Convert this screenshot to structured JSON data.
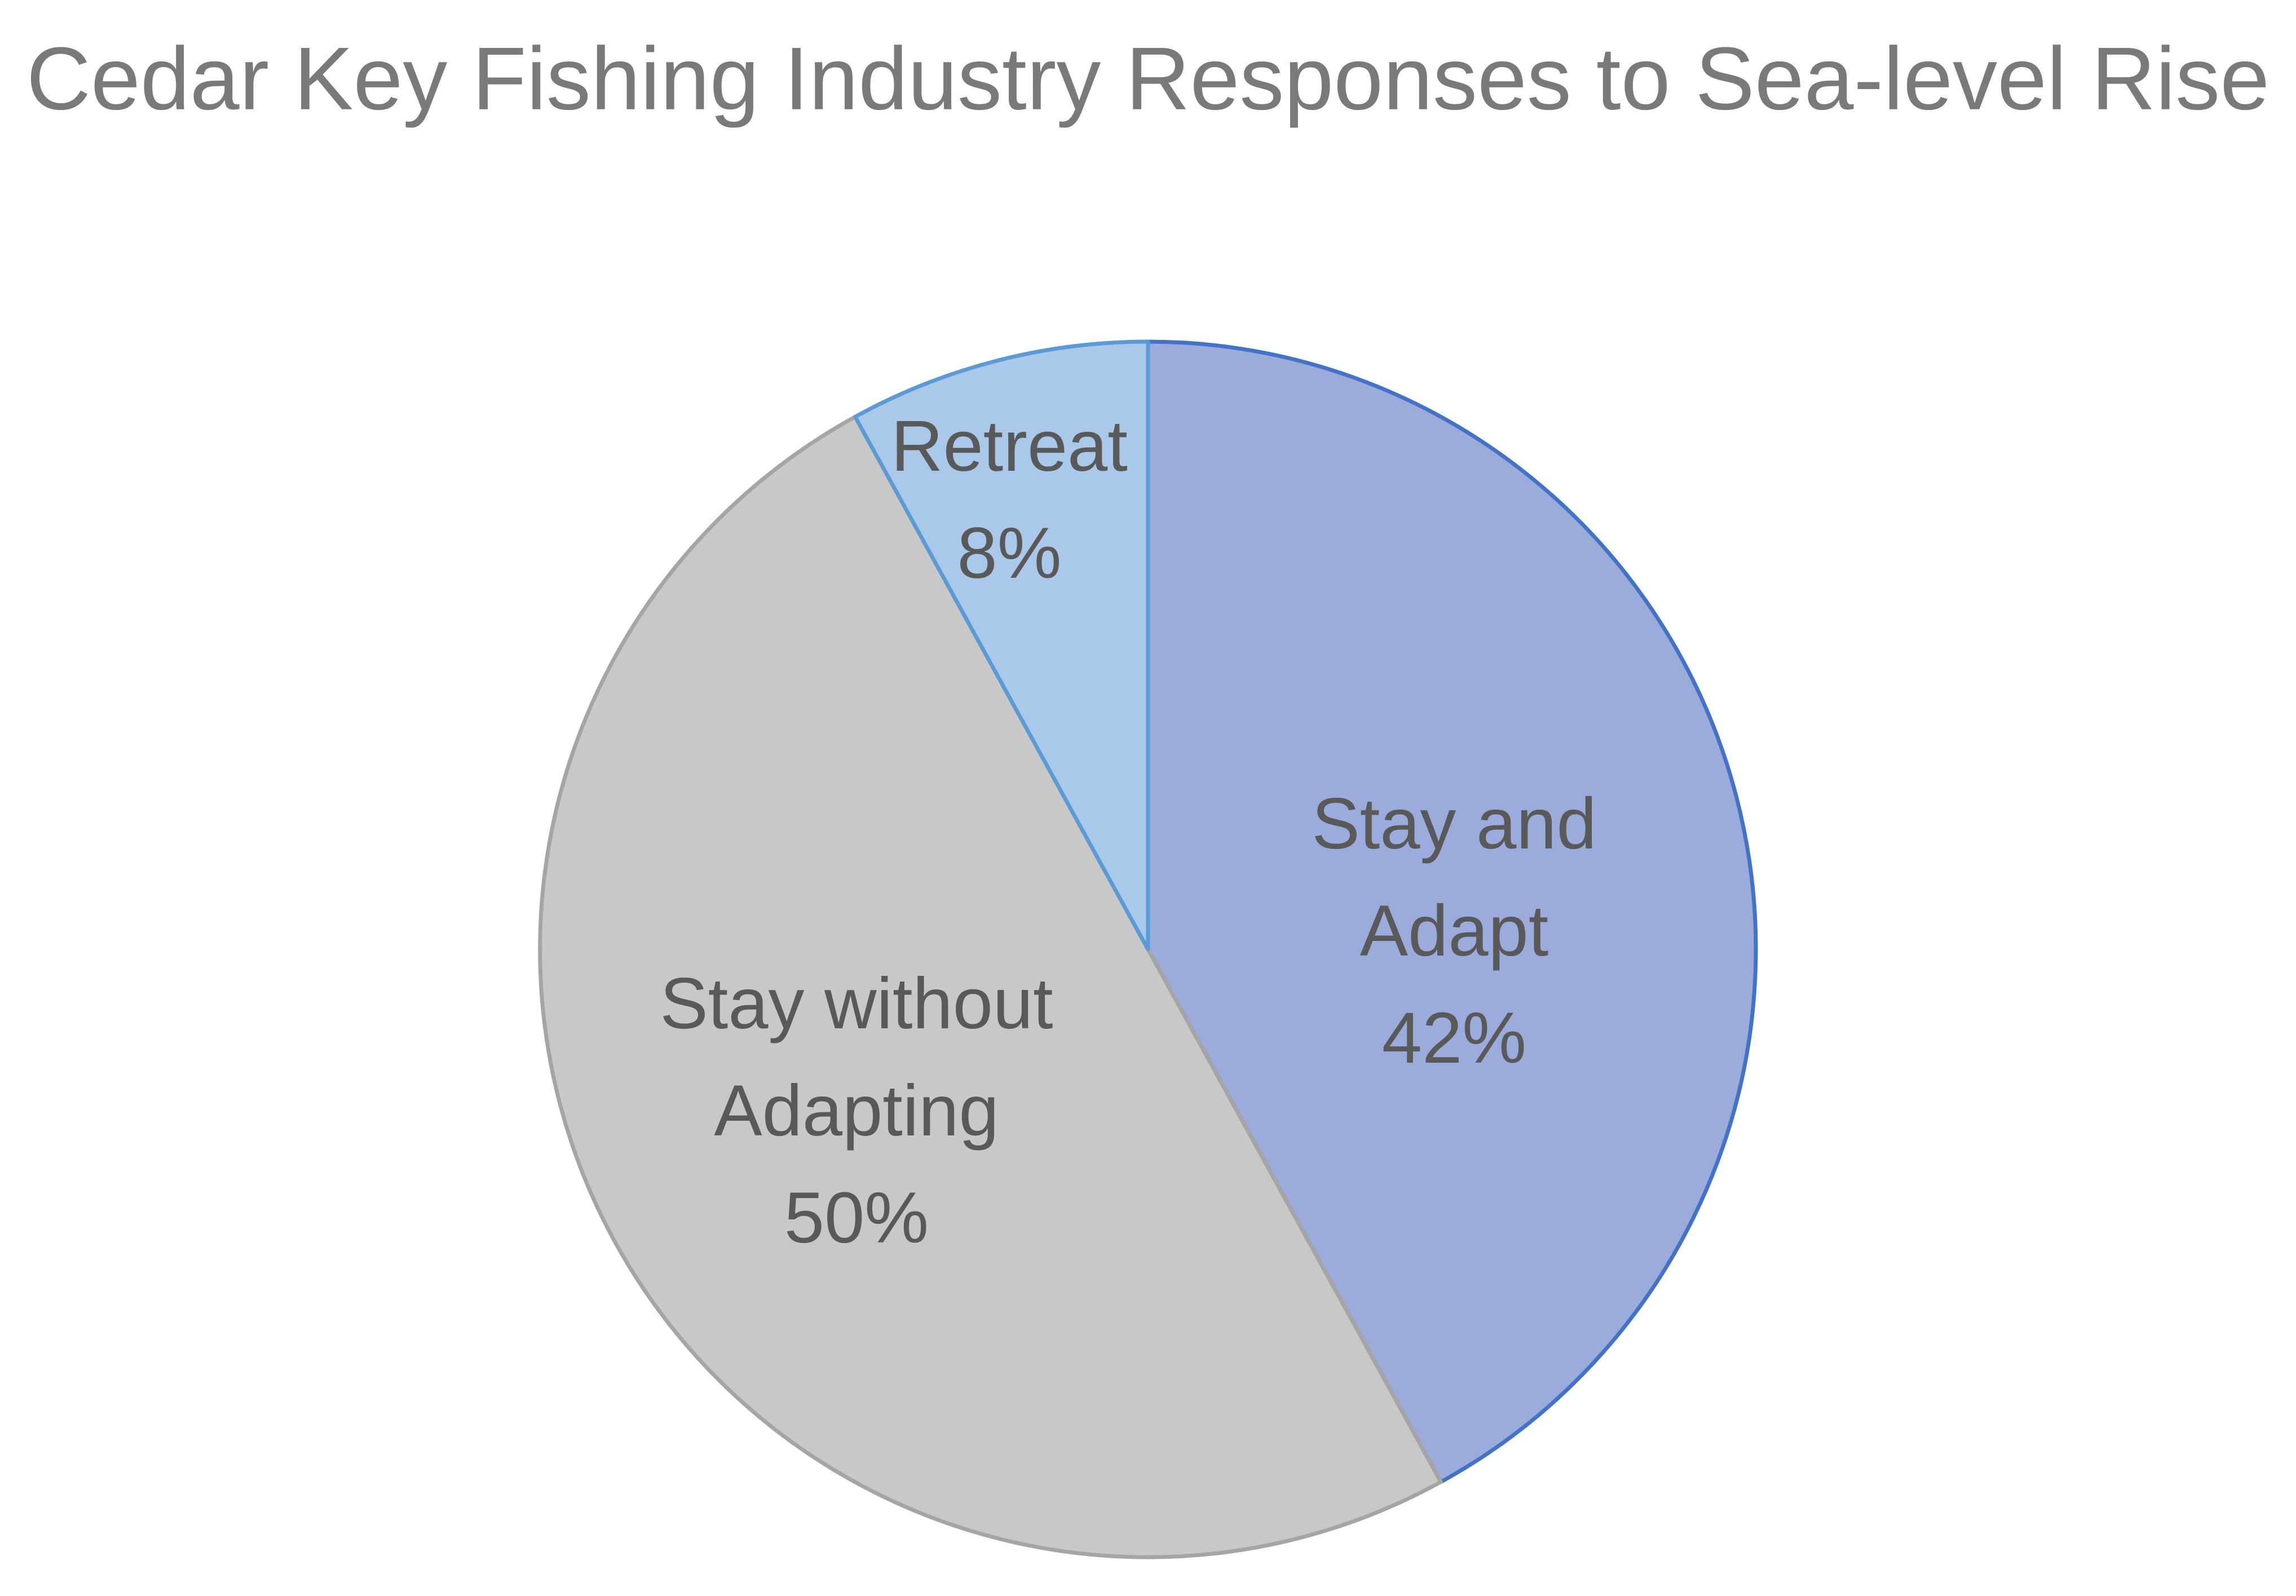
{
  "chart_data": {
    "type": "pie",
    "title": "Cedar Key Fishing Industry Responses to Sea-level Rise",
    "categories": [
      "Stay and Adapt",
      "Stay without Adapting",
      "Retreat"
    ],
    "values": [
      42,
      50,
      8
    ],
    "value_labels": [
      "42%",
      "50%",
      "8%"
    ],
    "colors": [
      "#9aabdc",
      "#c8c8c8",
      "#a9c8ea"
    ],
    "edge_colors": [
      "#4472c4",
      "#a5a5a5",
      "#5b9bd5"
    ]
  }
}
